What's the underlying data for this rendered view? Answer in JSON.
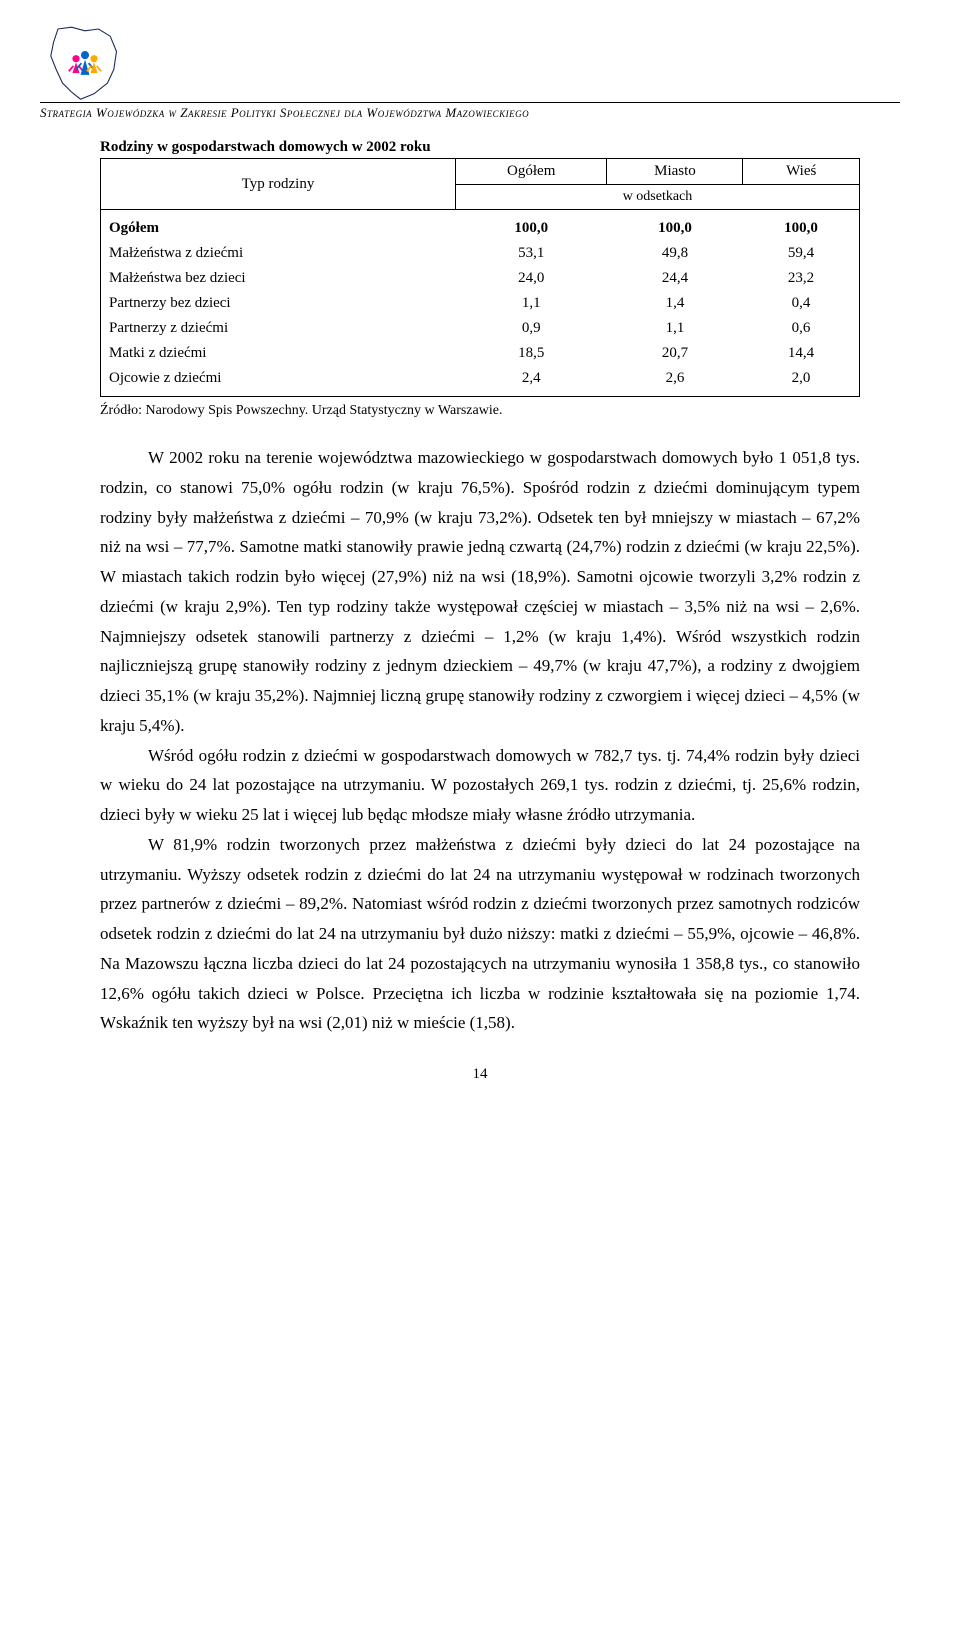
{
  "header": {
    "title": "Strategia Wojewódzka w Zakresie Polityki Społecznej dla Województwa Mazowieckiego"
  },
  "logo": {
    "outline_color": "#1a2a5a",
    "fig1_color": "#ff0088",
    "fig2_color": "#0066cc",
    "fig3_color": "#ffaa00"
  },
  "table": {
    "title": "Rodziny w gospodarstwach domowych w 2002 roku",
    "col_label": "Typ rodziny",
    "headers": [
      "Ogółem",
      "Miasto",
      "Wieś"
    ],
    "subheader": "w odsetkach",
    "rows": [
      {
        "label": "Ogółem",
        "vals": [
          "100,0",
          "100,0",
          "100,0"
        ],
        "bold": true
      },
      {
        "label": "Małżeństwa z dziećmi",
        "vals": [
          "53,1",
          "49,8",
          "59,4"
        ]
      },
      {
        "label": "Małżeństwa bez dzieci",
        "vals": [
          "24,0",
          "24,4",
          "23,2"
        ]
      },
      {
        "label": "Partnerzy bez dzieci",
        "vals": [
          "1,1",
          "1,4",
          "0,4"
        ]
      },
      {
        "label": "Partnerzy z dziećmi",
        "vals": [
          "0,9",
          "1,1",
          "0,6"
        ]
      },
      {
        "label": "Matki z dziećmi",
        "vals": [
          "18,5",
          "20,7",
          "14,4"
        ]
      },
      {
        "label": "Ojcowie z dziećmi",
        "vals": [
          "2,4",
          "2,6",
          "2,0"
        ]
      }
    ],
    "source": "Źródło: Narodowy Spis Powszechny. Urząd Statystyczny w Warszawie."
  },
  "body": {
    "p1": "W 2002 roku na terenie województwa mazowieckiego w gospodarstwach domowych było 1 051,8 tys. rodzin, co stanowi 75,0% ogółu rodzin (w kraju 76,5%). Spośród rodzin z dziećmi dominującym typem rodziny były małżeństwa z dziećmi – 70,9% (w kraju 73,2%). Odsetek ten był mniejszy w miastach – 67,2% niż na wsi – 77,7%. Samotne matki stanowiły prawie jedną czwartą (24,7%) rodzin z dziećmi (w kraju 22,5%). W miastach takich rodzin było więcej (27,9%) niż na wsi (18,9%). Samotni ojcowie tworzyli 3,2% rodzin z dziećmi (w kraju 2,9%). Ten typ rodziny także występował częściej w miastach – 3,5% niż na wsi – 2,6%. Najmniejszy odsetek stanowili partnerzy z dziećmi – 1,2% (w kraju 1,4%). Wśród wszystkich rodzin najliczniejszą grupę stanowiły rodziny z jednym dzieckiem – 49,7% (w kraju 47,7%), a rodziny z dwojgiem dzieci 35,1% (w kraju 35,2%). Najmniej liczną grupę stanowiły rodziny z czworgiem i więcej dzieci – 4,5% (w kraju 5,4%).",
    "p2": "Wśród ogółu rodzin z dziećmi w gospodarstwach domowych w 782,7 tys. tj. 74,4% rodzin były dzieci w wieku do 24 lat pozostające na utrzymaniu. W pozostałych 269,1 tys. rodzin z dziećmi, tj. 25,6% rodzin, dzieci były w wieku 25 lat i więcej lub będąc młodsze miały własne źródło utrzymania.",
    "p3": "W 81,9% rodzin tworzonych przez małżeństwa z dziećmi były dzieci do lat 24 pozostające na utrzymaniu. Wyższy odsetek rodzin z dziećmi do lat 24 na utrzymaniu występował w rodzinach tworzonych przez partnerów z dziećmi – 89,2%. Natomiast wśród rodzin z dziećmi tworzonych przez samotnych rodziców odsetek rodzin z dziećmi do lat 24 na utrzymaniu był dużo niższy: matki z dziećmi – 55,9%, ojcowie – 46,8%. Na Mazowszu łączna liczba dzieci do lat 24 pozostających na utrzymaniu wynosiła 1 358,8 tys., co stanowiło 12,6% ogółu takich dzieci w Polsce. Przeciętna ich liczba w rodzinie kształtowała się na poziomie 1,74. Wskaźnik ten wyższy był na wsi (2,01) niż w mieście (1,58)."
  },
  "page_number": "14"
}
